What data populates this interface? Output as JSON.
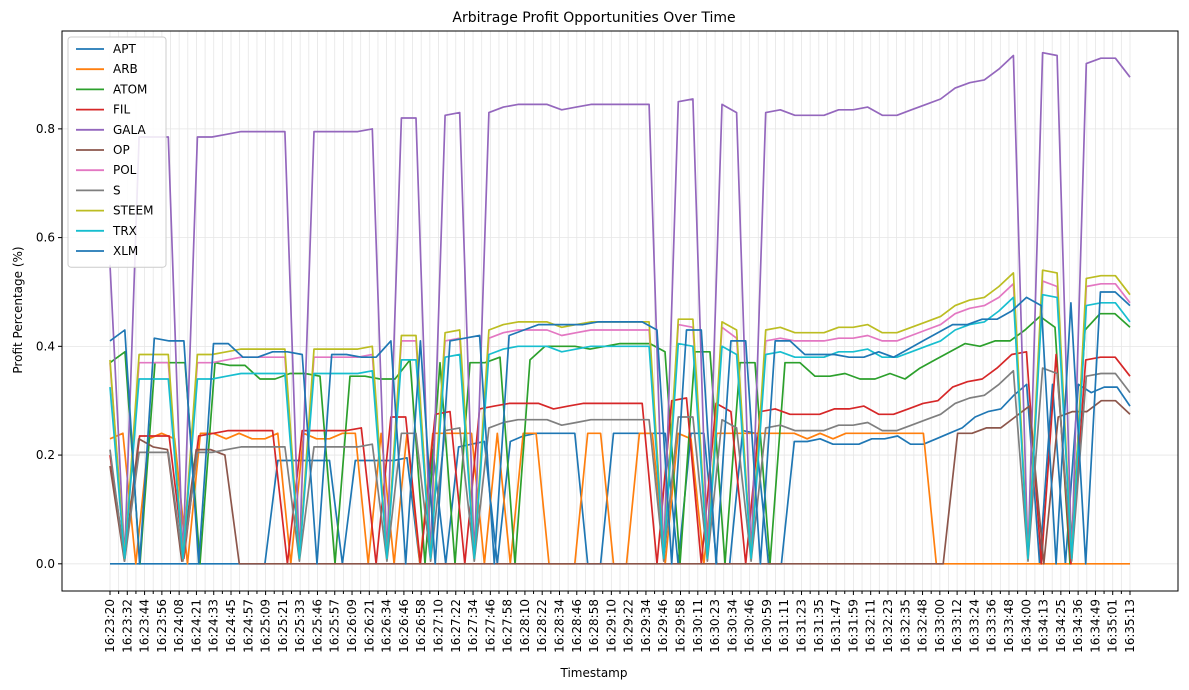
{
  "chart_data": {
    "type": "line",
    "title": "Arbitrage Profit Opportunities Over Time",
    "xlabel": "Timestamp",
    "ylabel": "Profit Percentage (%)",
    "ylim": [
      -0.05,
      0.98
    ],
    "yticks": [
      0.0,
      0.2,
      0.4,
      0.6,
      0.8
    ],
    "grid": true,
    "legend_position": "top-left",
    "x_tick_labels": [
      "16:23:20",
      "16:23:32",
      "16:23:44",
      "16:23:56",
      "16:24:08",
      "16:24:21",
      "16:24:33",
      "16:24:45",
      "16:24:57",
      "16:25:09",
      "16:25:21",
      "16:25:33",
      "16:25:46",
      "16:25:57",
      "16:26:09",
      "16:26:21",
      "16:26:34",
      "16:26:46",
      "16:26:58",
      "16:27:10",
      "16:27:22",
      "16:27:34",
      "16:27:46",
      "16:27:58",
      "16:28:10",
      "16:28:22",
      "16:28:34",
      "16:28:46",
      "16:28:58",
      "16:29:10",
      "16:29:22",
      "16:29:34",
      "16:29:46",
      "16:29:58",
      "16:30:11",
      "16:30:23",
      "16:30:34",
      "16:30:46",
      "16:30:59",
      "16:31:11",
      "16:31:23",
      "16:31:35",
      "16:31:47",
      "16:31:59",
      "16:32:11",
      "16:32:23",
      "16:32:35",
      "16:32:48",
      "16:33:00",
      "16:33:12",
      "16:33:24",
      "16:33:36",
      "16:33:48",
      "16:34:00",
      "16:34:13",
      "16:34:25",
      "16:34:36",
      "16:34:49",
      "16:35:01",
      "16:35:13"
    ],
    "x_tick_every": 2,
    "series": [
      {
        "name": "APT",
        "color": "#1f77b4",
        "values": [
          0,
          0,
          0,
          0,
          0,
          0,
          0,
          0,
          0,
          0,
          0,
          0,
          0,
          0.19,
          0.19,
          0.19,
          0.19,
          0.19,
          0,
          0.19,
          0.19,
          0.19,
          0.19,
          0.195,
          0,
          0.21,
          0,
          0.215,
          0.22,
          0.225,
          0,
          0.225,
          0.235,
          0.24,
          0.24,
          0.24,
          0.24,
          0,
          0,
          0.24,
          0.24,
          0.24,
          0.24,
          0.24,
          0,
          0.24,
          0.24,
          0,
          0,
          0.245,
          0.24,
          0,
          0,
          0.225,
          0.225,
          0.23,
          0.22,
          0.22,
          0.22,
          0.23,
          0.23,
          0.235,
          0.22,
          0.22,
          0.23,
          0.24,
          0.25,
          0.27,
          0.28,
          0.285,
          0.31,
          0.33,
          0,
          0.33,
          0,
          0.33,
          0.315,
          0.325,
          0.325,
          0.29
        ]
      },
      {
        "name": "ARB",
        "color": "#ff7f0e",
        "values": [
          0.23,
          0.24,
          0,
          0.23,
          0.24,
          0.23,
          0,
          0.24,
          0.24,
          0.23,
          0.24,
          0.23,
          0.23,
          0.24,
          0,
          0.24,
          0.23,
          0.23,
          0.24,
          0.24,
          0,
          0.24,
          0,
          0.24,
          0,
          0.24,
          0.24,
          0.24,
          0.24,
          0,
          0.24,
          0,
          0.24,
          0.24,
          0,
          0,
          0,
          0.24,
          0.24,
          0,
          0,
          0.24,
          0.24,
          0,
          0.24,
          0.23,
          0,
          0.24,
          0.24,
          0.24,
          0.24,
          0.24,
          0.24,
          0.24,
          0.23,
          0.24,
          0.23,
          0.24,
          0.24,
          0.24,
          0.24,
          0.24,
          0.24,
          0.24,
          0,
          0,
          0,
          0,
          0,
          0,
          0,
          0,
          0,
          0,
          0,
          0,
          0,
          0,
          0,
          0
        ]
      },
      {
        "name": "ATOM",
        "color": "#2ca02c",
        "values": [
          0.37,
          0.39,
          0,
          0.37,
          0.37,
          0.37,
          0,
          0.37,
          0.365,
          0.365,
          0.34,
          0.34,
          0.35,
          0.35,
          0.345,
          0,
          0.345,
          0.345,
          0.34,
          0.34,
          0.375,
          0,
          0.37,
          0,
          0.37,
          0.37,
          0.38,
          0,
          0.375,
          0.4,
          0.4,
          0.4,
          0.395,
          0.4,
          0.405,
          0.405,
          0.405,
          0.39,
          0,
          0.39,
          0.39,
          0,
          0.37,
          0.37,
          0,
          0.37,
          0.37,
          0.345,
          0.345,
          0.35,
          0.34,
          0.34,
          0.35,
          0.34,
          0.36,
          0.375,
          0.39,
          0.405,
          0.4,
          0.41,
          0.41,
          0.43,
          0.455,
          0.435,
          0,
          0.43,
          0.46,
          0.46,
          0.435
        ]
      },
      {
        "name": "FIL",
        "color": "#d62728",
        "values": [
          0.2,
          0.01,
          0.235,
          0.235,
          0.235,
          0.01,
          0.235,
          0.24,
          0.245,
          0.245,
          0.245,
          0.245,
          0,
          0.245,
          0.245,
          0.245,
          0.245,
          0.25,
          0,
          0.27,
          0.27,
          0,
          0.275,
          0.28,
          0,
          0.285,
          0.29,
          0.295,
          0.295,
          0.295,
          0.285,
          0.29,
          0.295,
          0.295,
          0.295,
          0.295,
          0.295,
          0,
          0.3,
          0.305,
          0,
          0.295,
          0.28,
          0,
          0.28,
          0.285,
          0.275,
          0.275,
          0.275,
          0.285,
          0.285,
          0.29,
          0.275,
          0.275,
          0.285,
          0.295,
          0.3,
          0.325,
          0.335,
          0.34,
          0.36,
          0.385,
          0.39,
          0,
          0.385,
          0,
          0.375,
          0.38,
          0.38,
          0.345
        ]
      },
      {
        "name": "GALA",
        "color": "#9467bd",
        "values": [
          0.55,
          0.01,
          0.785,
          0.785,
          0.785,
          0.01,
          0.785,
          0.785,
          0.79,
          0.795,
          0.795,
          0.795,
          0.795,
          0.01,
          0.795,
          0.795,
          0.795,
          0.795,
          0.8,
          0.01,
          0.82,
          0.82,
          0.01,
          0.825,
          0.83,
          0.01,
          0.83,
          0.84,
          0.845,
          0.845,
          0.845,
          0.835,
          0.84,
          0.845,
          0.845,
          0.845,
          0.845,
          0.845,
          0.01,
          0.85,
          0.855,
          0.01,
          0.845,
          0.83,
          0.01,
          0.83,
          0.835,
          0.825,
          0.825,
          0.825,
          0.835,
          0.835,
          0.84,
          0.825,
          0.825,
          0.835,
          0.845,
          0.855,
          0.875,
          0.885,
          0.89,
          0.91,
          0.935,
          0.01,
          0.94,
          0.935,
          0.01,
          0.92,
          0.93,
          0.93,
          0.895
        ]
      },
      {
        "name": "OP",
        "color": "#8c564b",
        "values": [
          0.18,
          0.005,
          0.23,
          0.215,
          0.21,
          0.005,
          0.21,
          0.21,
          0.2,
          0,
          0,
          0,
          0,
          0,
          0,
          0,
          0,
          0,
          0,
          0,
          0,
          0,
          0,
          0,
          0,
          0,
          0,
          0,
          0,
          0,
          0,
          0,
          0,
          0,
          0,
          0,
          0,
          0,
          0,
          0,
          0,
          0,
          0,
          0,
          0,
          0,
          0,
          0,
          0,
          0,
          0,
          0,
          0,
          0,
          0,
          0,
          0,
          0,
          0,
          0.24,
          0.24,
          0.25,
          0.25,
          0.27,
          0.29,
          0,
          0.27,
          0.28,
          0.28,
          0.3,
          0.3,
          0.275
        ]
      },
      {
        "name": "POL",
        "color": "#e377c2",
        "values": [
          0.37,
          0.01,
          0.37,
          0.37,
          0.37,
          0.01,
          0.37,
          0.37,
          0.375,
          0.38,
          0.38,
          0.38,
          0.38,
          0.01,
          0.38,
          0.38,
          0.38,
          0.38,
          0.385,
          0.01,
          0.41,
          0.41,
          0.01,
          0.41,
          0.415,
          0.01,
          0.415,
          0.425,
          0.43,
          0.43,
          0.43,
          0.42,
          0.425,
          0.43,
          0.43,
          0.43,
          0.43,
          0.43,
          0.01,
          0.44,
          0.435,
          0.01,
          0.435,
          0.415,
          0.01,
          0.41,
          0.415,
          0.41,
          0.41,
          0.41,
          0.415,
          0.415,
          0.42,
          0.41,
          0.41,
          0.42,
          0.43,
          0.44,
          0.46,
          0.47,
          0.475,
          0.49,
          0.515,
          0.01,
          0.52,
          0.51,
          0.01,
          0.51,
          0.515,
          0.515,
          0.48
        ]
      },
      {
        "name": "S",
        "color": "#7f7f7f",
        "values": [
          0.21,
          0.005,
          0.205,
          0.205,
          0.205,
          0.005,
          0.205,
          0.205,
          0.21,
          0.215,
          0.215,
          0.215,
          0.215,
          0.005,
          0.215,
          0.215,
          0.215,
          0.215,
          0.22,
          0.005,
          0.24,
          0.24,
          0.005,
          0.245,
          0.25,
          0.005,
          0.25,
          0.26,
          0.265,
          0.265,
          0.265,
          0.255,
          0.26,
          0.265,
          0.265,
          0.265,
          0.265,
          0.265,
          0.005,
          0.27,
          0.27,
          0.005,
          0.265,
          0.25,
          0.005,
          0.25,
          0.255,
          0.245,
          0.245,
          0.245,
          0.255,
          0.255,
          0.26,
          0.245,
          0.245,
          0.255,
          0.265,
          0.275,
          0.295,
          0.305,
          0.31,
          0.33,
          0.355,
          0.005,
          0.36,
          0.35,
          0.005,
          0.345,
          0.35,
          0.35,
          0.315
        ]
      },
      {
        "name": "STEEM",
        "color": "#bcbd22",
        "values": [
          0.375,
          0.01,
          0.385,
          0.385,
          0.385,
          0.01,
          0.385,
          0.385,
          0.39,
          0.395,
          0.395,
          0.395,
          0.395,
          0.01,
          0.395,
          0.395,
          0.395,
          0.395,
          0.4,
          0.01,
          0.42,
          0.42,
          0.01,
          0.425,
          0.43,
          0.01,
          0.43,
          0.44,
          0.445,
          0.445,
          0.445,
          0.435,
          0.44,
          0.445,
          0.445,
          0.445,
          0.445,
          0.445,
          0.01,
          0.45,
          0.45,
          0.01,
          0.445,
          0.43,
          0.01,
          0.43,
          0.435,
          0.425,
          0.425,
          0.425,
          0.435,
          0.435,
          0.44,
          0.425,
          0.425,
          0.435,
          0.445,
          0.455,
          0.475,
          0.485,
          0.49,
          0.51,
          0.535,
          0.01,
          0.54,
          0.535,
          0.01,
          0.525,
          0.53,
          0.53,
          0.495
        ]
      },
      {
        "name": "TRX",
        "color": "#17becf",
        "values": [
          0.325,
          0.01,
          0.34,
          0.34,
          0.34,
          0.01,
          0.34,
          0.34,
          0.345,
          0.35,
          0.35,
          0.35,
          0.35,
          0.01,
          0.35,
          0.35,
          0.35,
          0.35,
          0.355,
          0.01,
          0.375,
          0.375,
          0.01,
          0.38,
          0.385,
          0.01,
          0.385,
          0.395,
          0.4,
          0.4,
          0.4,
          0.39,
          0.395,
          0.4,
          0.4,
          0.4,
          0.4,
          0.4,
          0.01,
          0.405,
          0.4,
          0.01,
          0.4,
          0.385,
          0.01,
          0.385,
          0.39,
          0.38,
          0.38,
          0.38,
          0.39,
          0.39,
          0.395,
          0.38,
          0.38,
          0.39,
          0.4,
          0.41,
          0.43,
          0.44,
          0.445,
          0.465,
          0.49,
          0.01,
          0.495,
          0.49,
          0.01,
          0.475,
          0.48,
          0.48,
          0.445
        ]
      },
      {
        "name": "XLM",
        "color": "#1f77b4",
        "values": [
          0.41,
          0.43,
          0,
          0.415,
          0.41,
          0.41,
          0,
          0.405,
          0.405,
          0.38,
          0.38,
          0.39,
          0.39,
          0.385,
          0,
          0.385,
          0.385,
          0.38,
          0.38,
          0.41,
          0,
          0.41,
          0,
          0.41,
          0.415,
          0.42,
          0,
          0.42,
          0.43,
          0.44,
          0.44,
          0.44,
          0.44,
          0.445,
          0.445,
          0.445,
          0.445,
          0.43,
          0,
          0.43,
          0.43,
          0,
          0.41,
          0.41,
          0,
          0.41,
          0.41,
          0.385,
          0.385,
          0.385,
          0.38,
          0.38,
          0.39,
          0.38,
          0.395,
          0.41,
          0.425,
          0.44,
          0.44,
          0.45,
          0.45,
          0.465,
          0.49,
          0.475,
          0,
          0.48,
          0,
          0.5,
          0.5,
          0.475
        ]
      }
    ]
  }
}
